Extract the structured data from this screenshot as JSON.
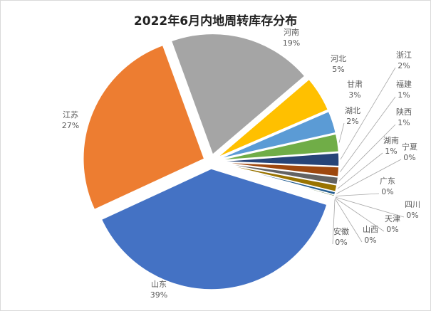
{
  "chart_data": {
    "type": "pie",
    "title": "2022年6月内地周转库存分布",
    "start_angle_deg": -20,
    "exploded": true,
    "slices": [
      {
        "name": "河南",
        "value": 19.5,
        "label": "19%",
        "color": "#A5A5A5"
      },
      {
        "name": "河北",
        "value": 4.8,
        "label": "5%",
        "color": "#FFC000"
      },
      {
        "name": "甘肃",
        "value": 3.0,
        "label": "3%",
        "color": "#5B9BD5"
      },
      {
        "name": "湖北",
        "value": 2.4,
        "label": "2%",
        "color": "#70AD47"
      },
      {
        "name": "浙江",
        "value": 1.8,
        "label": "2%",
        "color": "#264478"
      },
      {
        "name": "福建",
        "value": 1.3,
        "label": "1%",
        "color": "#9E480E"
      },
      {
        "name": "陕西",
        "value": 1.0,
        "label": "1%",
        "color": "#636363"
      },
      {
        "name": "湖南",
        "value": 0.9,
        "label": "1%",
        "color": "#997300"
      },
      {
        "name": "宁夏",
        "value": 0.4,
        "label": "0%",
        "color": "#255E91"
      },
      {
        "name": "广东",
        "value": 0.2,
        "label": "0%",
        "color": "#43682B"
      },
      {
        "name": "四川",
        "value": 0.1,
        "label": "0%",
        "color": "#698ED0"
      },
      {
        "name": "天津",
        "value": 0.1,
        "label": "0%",
        "color": "#F1975A"
      },
      {
        "name": "山西",
        "value": 0.1,
        "label": "0%",
        "color": "#B7B7B7"
      },
      {
        "name": "安徽",
        "value": 0.1,
        "label": "0%",
        "color": "#FFCD33"
      },
      {
        "name": "山东",
        "value": 38.7,
        "label": "39%",
        "color": "#4472C4"
      },
      {
        "name": "江苏",
        "value": 26.6,
        "label": "27%",
        "color": "#ED7D31"
      }
    ]
  }
}
